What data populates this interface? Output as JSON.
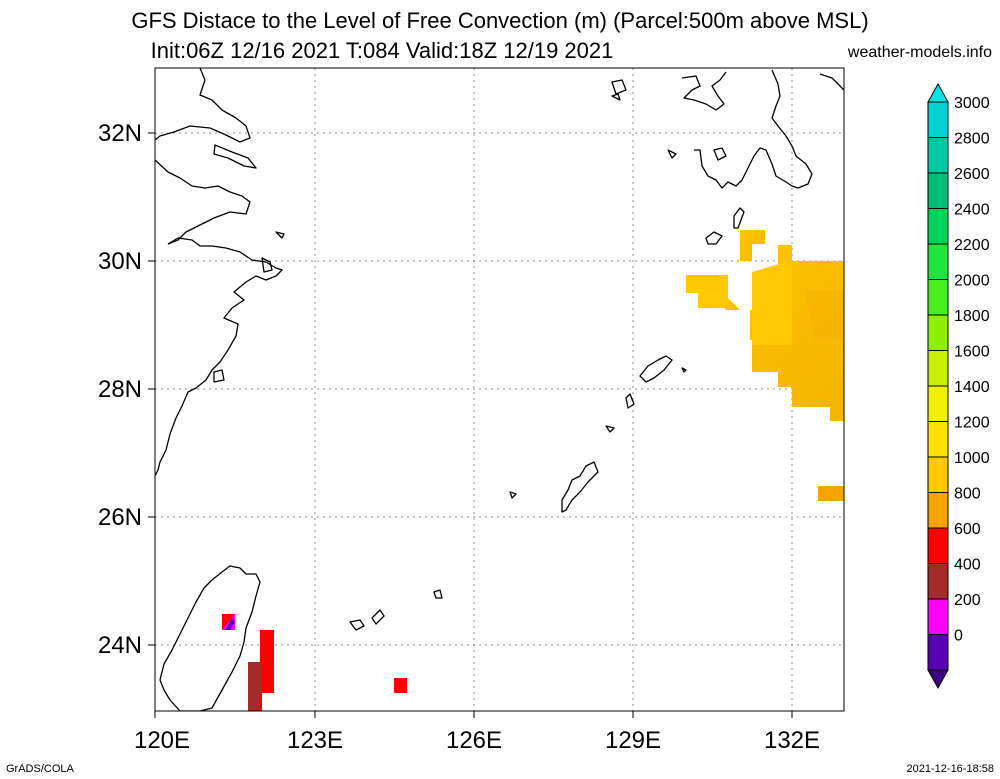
{
  "header": {
    "title_line1": "GFS Distace to the Level of Free Convection (m) (Parcel:500m above MSL)",
    "title_line2": "Init:06Z 12/16 2021 T:084 Valid:18Z 12/19 2021",
    "site": "weather-models.info"
  },
  "axes": {
    "lat_labels": [
      "32N",
      "30N",
      "28N",
      "26N",
      "24N"
    ],
    "lon_labels": [
      "120E",
      "123E",
      "126E",
      "129E",
      "132E"
    ]
  },
  "colorbar": {
    "labels": [
      "3000",
      "2800",
      "2600",
      "2400",
      "2200",
      "2000",
      "1800",
      "1600",
      "1400",
      "1200",
      "1000",
      "800",
      "600",
      "400",
      "200",
      "0"
    ],
    "colors": [
      "#00d2d2",
      "#00c8a0",
      "#00be78",
      "#00d25a",
      "#1ee63c",
      "#46f01e",
      "#8cf000",
      "#c8f000",
      "#f0f000",
      "#ffe100",
      "#ffc800",
      "#f5a500",
      "#ff0000",
      "#a52a2a",
      "#ff00ff",
      "#5a00b4"
    ],
    "top_arrow_color": "#00e6e6",
    "bottom_arrow_color": "#3c0082"
  },
  "footer": {
    "left": "GrADS/COLA",
    "right": "2021-12-16-18:58"
  }
}
